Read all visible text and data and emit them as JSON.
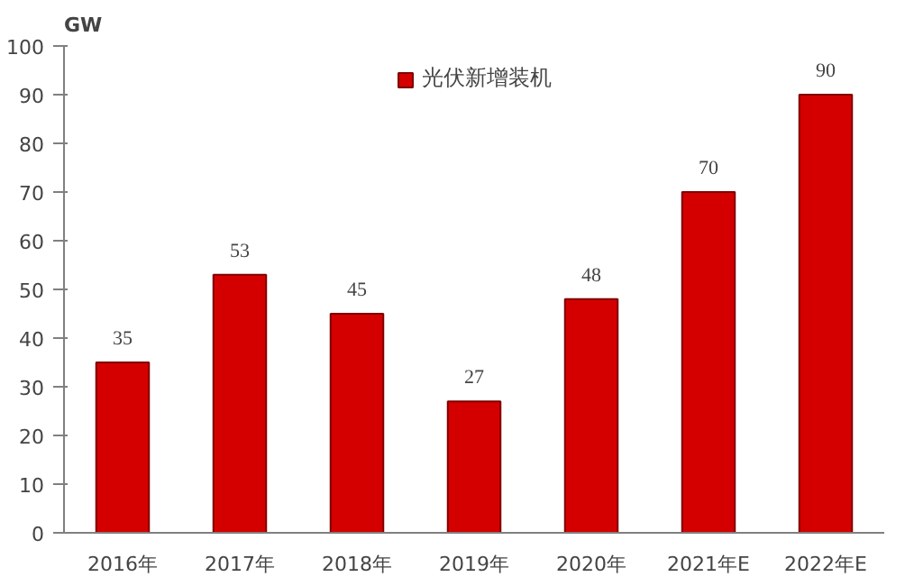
{
  "chart_data": {
    "type": "bar",
    "ylabel": "GW",
    "categories": [
      "2016年",
      "2017年",
      "2018年",
      "2019年",
      "2020年",
      "2021年E",
      "2022年E"
    ],
    "series": [
      {
        "name": "光伏新增装机",
        "color": "#d40000",
        "values": [
          35,
          53,
          45,
          27,
          48,
          70,
          90
        ]
      }
    ],
    "ylim": [
      0,
      100
    ],
    "yticks": [
      0,
      10,
      20,
      30,
      40,
      50,
      60,
      70,
      80,
      90,
      100
    ],
    "data_labels": true,
    "legend": "top",
    "grid": false
  }
}
